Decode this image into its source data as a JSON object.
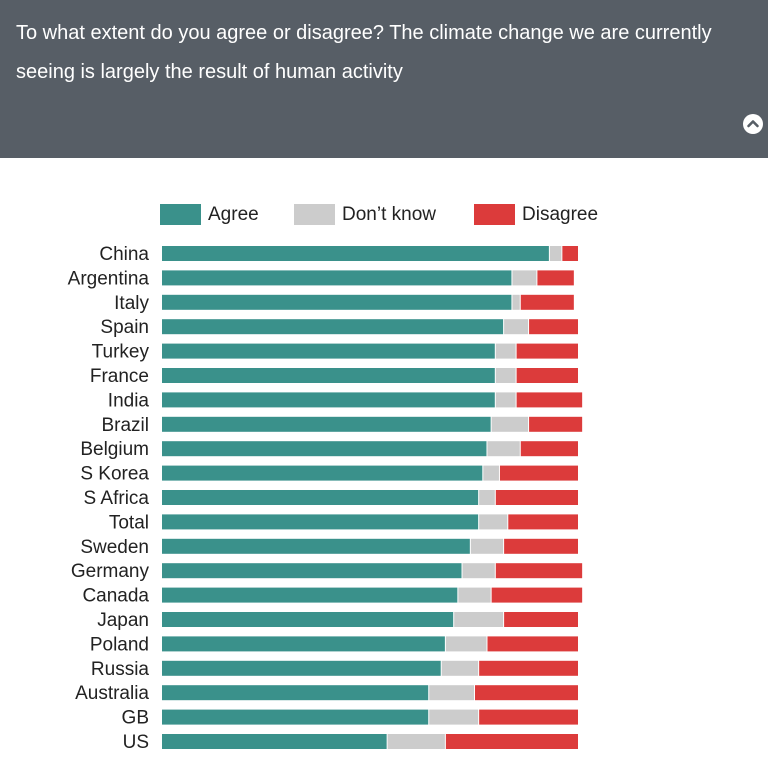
{
  "header": {
    "question": "To what extent do you agree or disagree? The climate change we are currently seeing is largely the result of human activity"
  },
  "colors": {
    "agree": "#3a918b",
    "dont_know": "#cccccc",
    "disagree": "#dc3b3b",
    "header_bg": "#575e66"
  },
  "chart_data": {
    "type": "bar",
    "orientation": "horizontal",
    "stacked": true,
    "legend": [
      "Agree",
      "Don't know",
      "Disagree"
    ],
    "legend_labels": [
      "Agree",
      "Don’t know",
      "Disagree"
    ],
    "legend_position": "top",
    "grid": false,
    "categories": [
      "China",
      "Argentina",
      "Italy",
      "Spain",
      "Turkey",
      "France",
      "India",
      "Brazil",
      "Belgium",
      "S Korea",
      "S Africa",
      "Total",
      "Sweden",
      "Germany",
      "Canada",
      "Japan",
      "Poland",
      "Russia",
      "Australia",
      "GB",
      "US"
    ],
    "series": [
      {
        "name": "Agree",
        "values": [
          93,
          84,
          84,
          82,
          80,
          80,
          80,
          79,
          78,
          77,
          76,
          76,
          74,
          72,
          71,
          70,
          68,
          67,
          64,
          64,
          54
        ]
      },
      {
        "name": "Don't know",
        "values": [
          3,
          6,
          2,
          6,
          5,
          5,
          5,
          9,
          8,
          4,
          4,
          7,
          8,
          8,
          8,
          12,
          10,
          9,
          11,
          12,
          14
        ]
      },
      {
        "name": "Disagree",
        "values": [
          4,
          9,
          13,
          12,
          15,
          15,
          16,
          13,
          14,
          19,
          20,
          17,
          18,
          21,
          22,
          18,
          22,
          24,
          25,
          24,
          32
        ]
      }
    ],
    "xlim": [
      0,
      100
    ]
  }
}
